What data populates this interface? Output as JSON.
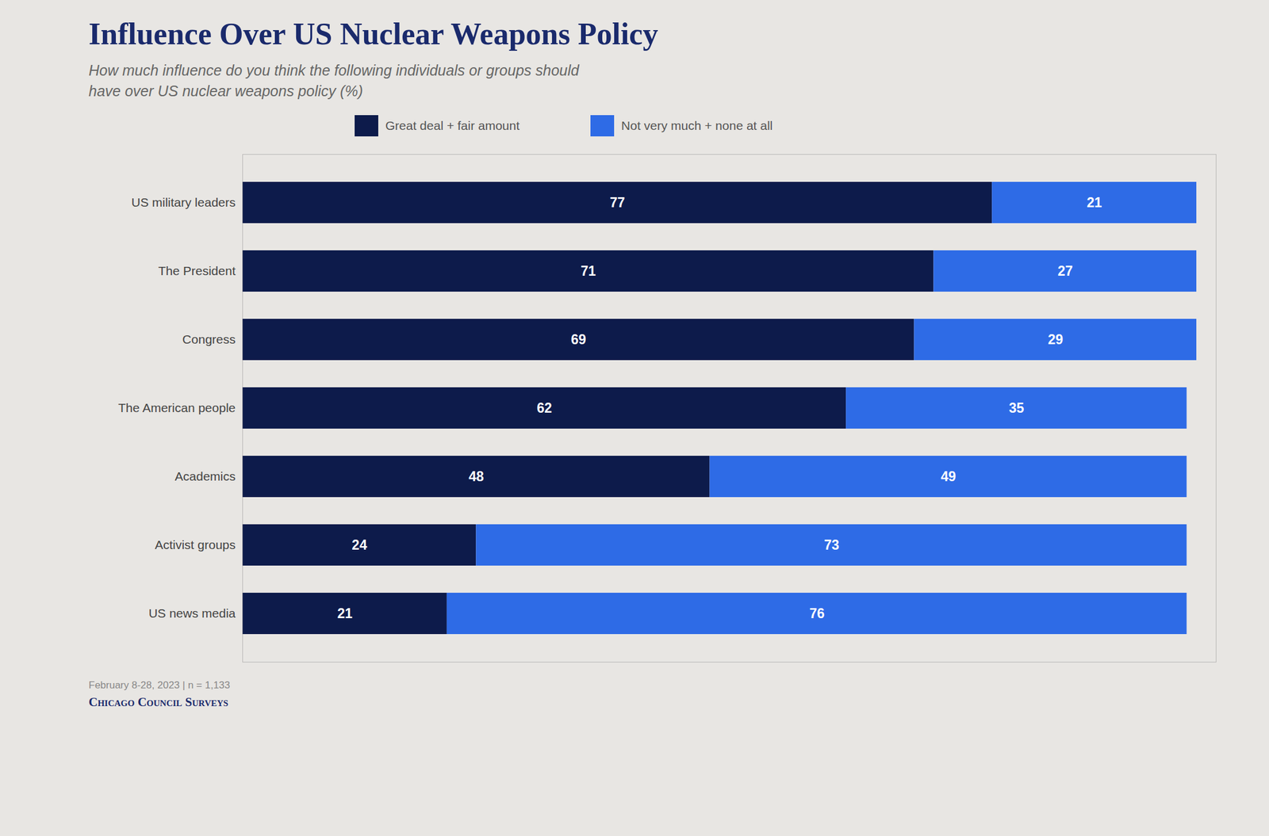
{
  "chart_data": {
    "type": "bar",
    "title": "Influence Over US Nuclear Weapons Policy",
    "subtitle": [
      "How much influence do you think the following individuals or groups should",
      "have over US nuclear weapons policy (%)"
    ],
    "categories": [
      "US military leaders",
      "The President",
      "Congress",
      "The American people",
      "Academics",
      "Activist groups",
      "US news media"
    ],
    "series": [
      {
        "name": "Great deal + fair amount",
        "color": "#0d1b4b",
        "values": [
          77,
          71,
          69,
          62,
          48,
          24,
          21
        ]
      },
      {
        "name": "Not very much + none at all",
        "color": "#2e6be6",
        "values": [
          21,
          27,
          29,
          35,
          49,
          73,
          76
        ]
      }
    ],
    "orientation": "horizontal",
    "stacked": true,
    "data_labels": true,
    "legend": "top",
    "grid": false,
    "tick_labels": "y",
    "xlim": [
      0,
      100
    ],
    "xticks": [],
    "footnote": "February 8-28, 2023 | n = 1,133",
    "source": "Chicago Council Surveys"
  }
}
